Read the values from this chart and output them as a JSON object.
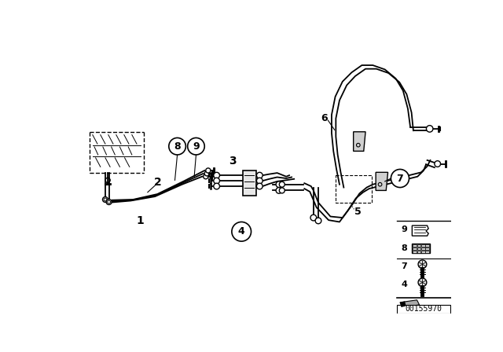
{
  "bg_color": "#ffffff",
  "line_color": "#000000",
  "diagram_id": "00155970"
}
